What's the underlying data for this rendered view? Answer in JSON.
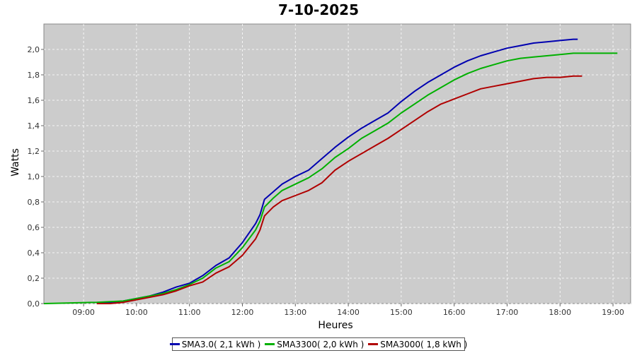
{
  "chart_data": {
    "type": "line",
    "title": "7-10-2025",
    "xlabel": "Heures",
    "ylabel": "Watts",
    "x_ticks": [
      "09:00",
      "10:00",
      "11:00",
      "12:00",
      "13:00",
      "14:00",
      "15:00",
      "16:00",
      "17:00",
      "18:00",
      "19:00"
    ],
    "y_ticks": [
      "0,0",
      "0,2",
      "0,4",
      "0,6",
      "0,8",
      "1,0",
      "1,2",
      "1,4",
      "1,6",
      "1,8",
      "2,0"
    ],
    "xlim": [
      "08:15",
      "19:20"
    ],
    "ylim": [
      0,
      2.2
    ],
    "grid": true,
    "legend_position": "bottom",
    "colors": {
      "plot_bg": "#cccccc",
      "grid": "#ffffff"
    },
    "series": [
      {
        "name": "SMA3.0( 2,1 kWh )",
        "color": "#0000b0",
        "points": [
          [
            "09:15",
            0.0
          ],
          [
            "09:30",
            0.01
          ],
          [
            "09:45",
            0.02
          ],
          [
            "10:00",
            0.04
          ],
          [
            "10:15",
            0.06
          ],
          [
            "10:30",
            0.09
          ],
          [
            "10:45",
            0.13
          ],
          [
            "11:00",
            0.16
          ],
          [
            "11:15",
            0.22
          ],
          [
            "11:30",
            0.3
          ],
          [
            "11:45",
            0.36
          ],
          [
            "12:00",
            0.48
          ],
          [
            "12:15",
            0.63
          ],
          [
            "12:20",
            0.7
          ],
          [
            "12:25",
            0.82
          ],
          [
            "12:35",
            0.88
          ],
          [
            "12:45",
            0.94
          ],
          [
            "13:00",
            1.0
          ],
          [
            "13:15",
            1.05
          ],
          [
            "13:30",
            1.14
          ],
          [
            "13:45",
            1.23
          ],
          [
            "14:00",
            1.31
          ],
          [
            "14:15",
            1.38
          ],
          [
            "14:30",
            1.44
          ],
          [
            "14:45",
            1.5
          ],
          [
            "15:00",
            1.59
          ],
          [
            "15:15",
            1.67
          ],
          [
            "15:30",
            1.74
          ],
          [
            "15:45",
            1.8
          ],
          [
            "16:00",
            1.86
          ],
          [
            "16:15",
            1.91
          ],
          [
            "16:30",
            1.95
          ],
          [
            "16:45",
            1.98
          ],
          [
            "17:00",
            2.01
          ],
          [
            "17:15",
            2.03
          ],
          [
            "17:30",
            2.05
          ],
          [
            "17:45",
            2.06
          ],
          [
            "18:00",
            2.07
          ],
          [
            "18:15",
            2.08
          ],
          [
            "18:20",
            2.08
          ]
        ]
      },
      {
        "name": "SMA3300( 2,0 kWh )",
        "color": "#00b000",
        "points": [
          [
            "08:15",
            0.0
          ],
          [
            "08:45",
            0.005
          ],
          [
            "09:15",
            0.01
          ],
          [
            "09:30",
            0.015
          ],
          [
            "09:45",
            0.02
          ],
          [
            "10:00",
            0.04
          ],
          [
            "10:15",
            0.06
          ],
          [
            "10:30",
            0.08
          ],
          [
            "10:45",
            0.11
          ],
          [
            "11:00",
            0.15
          ],
          [
            "11:15",
            0.2
          ],
          [
            "11:30",
            0.28
          ],
          [
            "11:45",
            0.33
          ],
          [
            "12:00",
            0.44
          ],
          [
            "12:15",
            0.58
          ],
          [
            "12:20",
            0.65
          ],
          [
            "12:25",
            0.76
          ],
          [
            "12:35",
            0.83
          ],
          [
            "12:45",
            0.89
          ],
          [
            "13:00",
            0.94
          ],
          [
            "13:15",
            0.99
          ],
          [
            "13:30",
            1.06
          ],
          [
            "13:45",
            1.15
          ],
          [
            "14:00",
            1.22
          ],
          [
            "14:15",
            1.3
          ],
          [
            "14:30",
            1.36
          ],
          [
            "14:45",
            1.42
          ],
          [
            "15:00",
            1.5
          ],
          [
            "15:15",
            1.57
          ],
          [
            "15:30",
            1.64
          ],
          [
            "15:45",
            1.7
          ],
          [
            "16:00",
            1.76
          ],
          [
            "16:15",
            1.81
          ],
          [
            "16:30",
            1.85
          ],
          [
            "16:45",
            1.88
          ],
          [
            "17:00",
            1.91
          ],
          [
            "17:15",
            1.93
          ],
          [
            "17:30",
            1.94
          ],
          [
            "17:45",
            1.95
          ],
          [
            "18:00",
            1.96
          ],
          [
            "18:15",
            1.97
          ],
          [
            "18:45",
            1.97
          ],
          [
            "19:05",
            1.97
          ]
        ]
      },
      {
        "name": "SMA3000( 1,8 kWh )",
        "color": "#b00000",
        "points": [
          [
            "09:15",
            0.0
          ],
          [
            "09:30",
            0.0
          ],
          [
            "09:45",
            0.01
          ],
          [
            "10:00",
            0.03
          ],
          [
            "10:15",
            0.05
          ],
          [
            "10:30",
            0.07
          ],
          [
            "10:45",
            0.1
          ],
          [
            "11:00",
            0.14
          ],
          [
            "11:15",
            0.17
          ],
          [
            "11:30",
            0.24
          ],
          [
            "11:45",
            0.29
          ],
          [
            "12:00",
            0.38
          ],
          [
            "12:15",
            0.51
          ],
          [
            "12:20",
            0.58
          ],
          [
            "12:25",
            0.69
          ],
          [
            "12:35",
            0.76
          ],
          [
            "12:45",
            0.81
          ],
          [
            "13:00",
            0.85
          ],
          [
            "13:15",
            0.89
          ],
          [
            "13:30",
            0.95
          ],
          [
            "13:45",
            1.05
          ],
          [
            "14:00",
            1.12
          ],
          [
            "14:15",
            1.18
          ],
          [
            "14:30",
            1.24
          ],
          [
            "14:45",
            1.3
          ],
          [
            "15:00",
            1.37
          ],
          [
            "15:15",
            1.44
          ],
          [
            "15:30",
            1.51
          ],
          [
            "15:45",
            1.57
          ],
          [
            "16:00",
            1.61
          ],
          [
            "16:15",
            1.65
          ],
          [
            "16:30",
            1.69
          ],
          [
            "16:45",
            1.71
          ],
          [
            "17:00",
            1.73
          ],
          [
            "17:15",
            1.75
          ],
          [
            "17:30",
            1.77
          ],
          [
            "17:45",
            1.78
          ],
          [
            "18:00",
            1.78
          ],
          [
            "18:15",
            1.79
          ],
          [
            "18:25",
            1.79
          ]
        ]
      }
    ]
  }
}
